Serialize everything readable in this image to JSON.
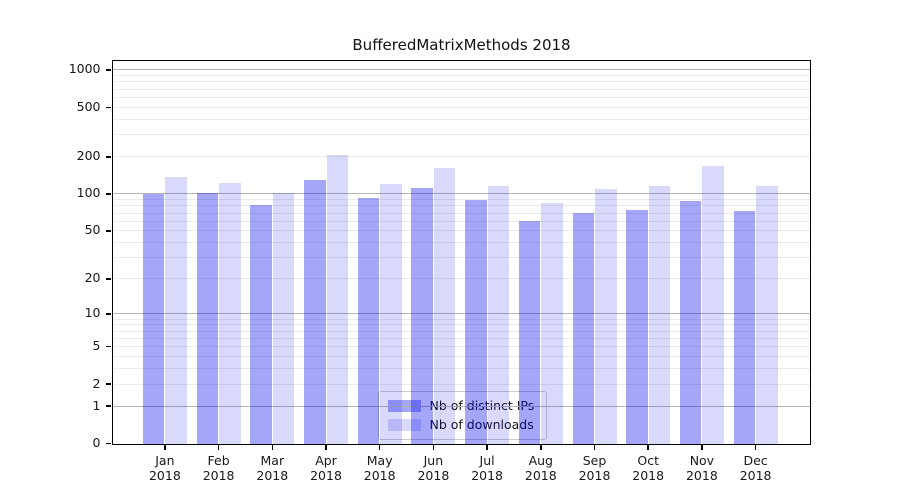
{
  "figure": {
    "title": "BufferedMatrixMethods 2018"
  },
  "chart_data": {
    "type": "bar",
    "title": "BufferedMatrixMethods 2018",
    "categories": [
      "Jan",
      "Feb",
      "Mar",
      "Apr",
      "May",
      "Jun",
      "Jul",
      "Aug",
      "Sep",
      "Oct",
      "Nov",
      "Dec"
    ],
    "category_year": "2018",
    "series": [
      {
        "name": "Nb of distinct IPs",
        "color": "rgba(0,0,238,0.35)",
        "values": [
          100,
          102,
          82,
          130,
          93,
          112,
          90,
          60,
          70,
          74,
          88,
          73
        ]
      },
      {
        "name": "Nb of downloads",
        "color": "rgba(0,0,238,0.15)",
        "values": [
          138,
          123,
          102,
          205,
          120,
          162,
          116,
          84,
          110,
          117,
          170,
          116
        ]
      }
    ],
    "xlabel": "",
    "ylabel": "",
    "y_scale": "log10(value + 1)",
    "y_ticks": [
      0,
      1,
      2,
      5,
      10,
      20,
      50,
      100,
      200,
      500,
      1000
    ],
    "y_minor_gridline_decades": [
      1,
      10,
      100
    ],
    "ylim": [
      0,
      1200
    ],
    "grid": "horizontal",
    "legend_position": "lower center",
    "colors": {
      "major_gridline": "#b5b5b5",
      "minor_gridline": "#ececec",
      "frame": "#000000",
      "text": "#191919"
    }
  }
}
